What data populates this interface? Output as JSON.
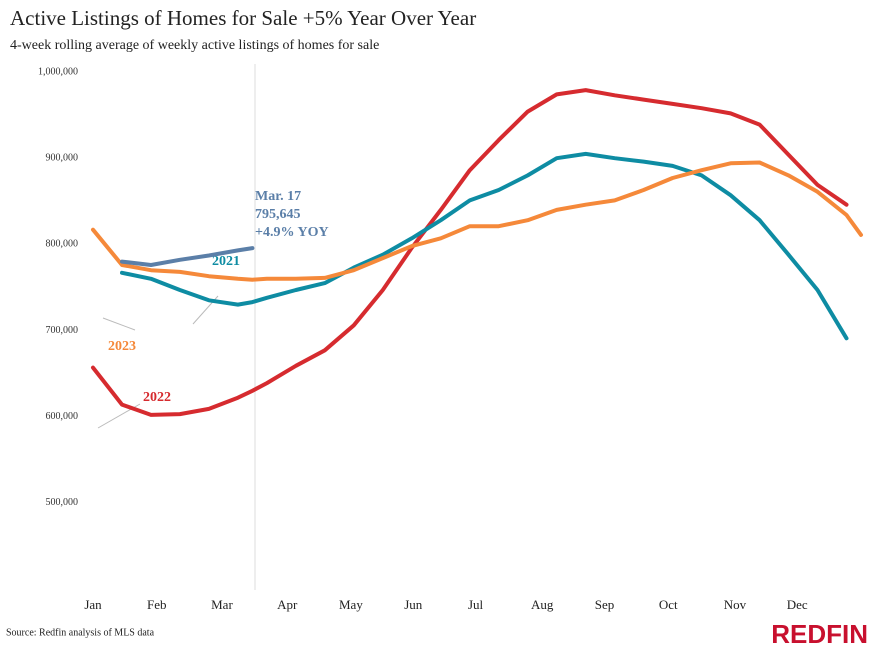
{
  "chart_data": {
    "type": "line",
    "title": "Active Listings of Homes for Sale +5% Year Over Year",
    "subtitle": "4-week rolling average of weekly active listings of homes for sale",
    "source": "Source: Redfin analysis of MLS data",
    "logo": "REDFIN",
    "annotation": [
      "Mar. 17",
      "795,645",
      "+4.9% YOY"
    ],
    "x": [
      1,
      3,
      5,
      7,
      9,
      11,
      12,
      13,
      15,
      17,
      19,
      21,
      23,
      25,
      27,
      29,
      31,
      33,
      35,
      37,
      39,
      41,
      43,
      45,
      47,
      49,
      51,
      53,
      54
    ],
    "xlim": [
      1,
      54
    ],
    "xticks": [
      {
        "value": 1,
        "label": "Jan"
      },
      {
        "value": 5.4,
        "label": "Feb"
      },
      {
        "value": 9.9,
        "label": "Mar"
      },
      {
        "value": 14.4,
        "label": "Apr"
      },
      {
        "value": 18.8,
        "label": "May"
      },
      {
        "value": 23.1,
        "label": "Jun"
      },
      {
        "value": 27.4,
        "label": "Jul"
      },
      {
        "value": 32,
        "label": "Aug"
      },
      {
        "value": 36.3,
        "label": "Sep"
      },
      {
        "value": 40.7,
        "label": "Oct"
      },
      {
        "value": 45.3,
        "label": "Nov"
      },
      {
        "value": 49.6,
        "label": "Dec"
      }
    ],
    "ylim": [
      400000,
      1000000
    ],
    "yticks": [
      {
        "value": 500000,
        "label": "500,000"
      },
      {
        "value": 600000,
        "label": "600,000"
      },
      {
        "value": 700000,
        "label": "700,000"
      },
      {
        "value": 800000,
        "label": "800,000"
      },
      {
        "value": 900000,
        "label": "900,000"
      },
      {
        "value": 1000000,
        "label": "1,000,000"
      }
    ],
    "series": [
      {
        "name": "2022",
        "color": "#d62b2f",
        "values": [
          657000,
          614000,
          602000,
          603000,
          609000,
          622000,
          630000,
          639000,
          659000,
          677000,
          706000,
          747000,
          796000,
          840000,
          886000,
          921000,
          954000,
          974000,
          979000,
          973000,
          968000,
          963000,
          958000,
          952000,
          939000,
          904000,
          869000,
          846000,
          null
        ]
      },
      {
        "name": "2021",
        "color": "#0e8ca3",
        "values": [
          null,
          767000,
          760000,
          747000,
          735000,
          730000,
          733000,
          738000,
          747000,
          755000,
          773000,
          788000,
          807000,
          828000,
          851000,
          863000,
          880000,
          900000,
          905000,
          900000,
          896000,
          891000,
          880000,
          857000,
          828000,
          788000,
          747000,
          691000,
          null
        ]
      },
      {
        "name": "2023",
        "color": "#f5893a",
        "values": [
          817000,
          776000,
          770000,
          768000,
          763000,
          760000,
          759000,
          760000,
          760000,
          761000,
          770000,
          784000,
          798000,
          807000,
          821000,
          821000,
          828000,
          840000,
          846000,
          851000,
          863000,
          877000,
          886000,
          894000,
          895000,
          880000,
          861000,
          834000,
          811000
        ]
      },
      {
        "color": "#5b7fa8",
        "values": [
          null,
          780000,
          776000,
          782000,
          787000,
          793000,
          795645,
          null,
          null,
          null,
          null,
          null,
          null,
          null,
          null,
          null,
          null,
          null,
          null,
          null,
          null,
          null,
          null,
          null,
          null,
          null,
          null,
          null,
          null
        ]
      }
    ]
  }
}
